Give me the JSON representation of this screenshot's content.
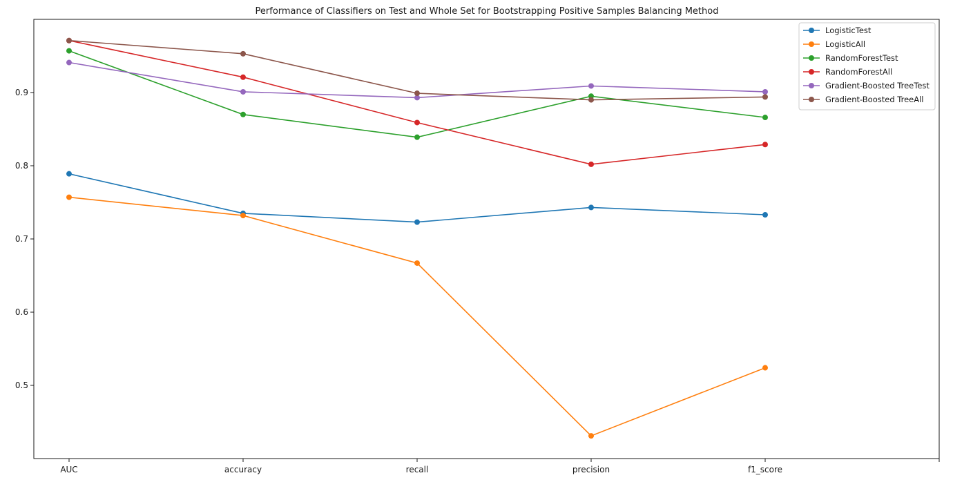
{
  "chart_data": {
    "type": "line",
    "title": "Performance of Classifiers on Test and Whole Set for Bootstrapping Positive Samples Balancing Method",
    "xlabel": "",
    "ylabel": "",
    "categories": [
      "AUC",
      "accuracy",
      "recall",
      "precision",
      "f1_score"
    ],
    "ylim": [
      0.4,
      1.0
    ],
    "yticks": [
      0.5,
      0.6,
      0.7,
      0.8,
      0.9
    ],
    "grid": false,
    "legend_position": "top-right",
    "markers": "circle",
    "series": [
      {
        "name": "LogisticTest",
        "color": "#1f77b4",
        "values": [
          0.789,
          0.735,
          0.723,
          0.743,
          0.733
        ]
      },
      {
        "name": "LogisticAll",
        "color": "#ff7f0e",
        "values": [
          0.757,
          0.732,
          0.667,
          0.431,
          0.524
        ]
      },
      {
        "name": "RandomForestTest",
        "color": "#2ca02c",
        "values": [
          0.957,
          0.87,
          0.839,
          0.895,
          0.866
        ]
      },
      {
        "name": "RandomForestAll",
        "color": "#d62728",
        "values": [
          0.971,
          0.921,
          0.859,
          0.802,
          0.829
        ]
      },
      {
        "name": "Gradient-Boosted TreeTest",
        "color": "#9467bd",
        "values": [
          0.941,
          0.901,
          0.893,
          0.909,
          0.901
        ]
      },
      {
        "name": "Gradient-Boosted TreeAll",
        "color": "#8c564b",
        "values": [
          0.971,
          0.953,
          0.899,
          0.89,
          0.894
        ]
      }
    ]
  }
}
